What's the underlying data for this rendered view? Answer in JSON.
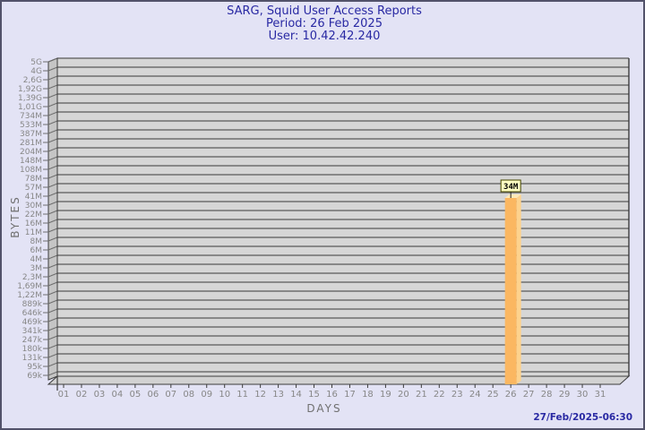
{
  "header": {
    "title": "SARG, Squid User Access Reports",
    "period": "Period: 26 Feb 2025",
    "user": "User: 10.42.42.240"
  },
  "footer": {
    "timestamp": "27/Feb/2025-06:30"
  },
  "chart_data": {
    "type": "bar",
    "title": "SARG, Squid User Access Reports",
    "subtitle1": "Period: 26 Feb 2025",
    "subtitle2": "User: 10.42.42.240",
    "xlabel": "DAYS",
    "ylabel": "BYTES",
    "y_scale": "log",
    "grid": "horizontal",
    "legend_position": "none",
    "y_ticks": [
      "5G",
      "4G",
      "2,6G",
      "1,92G",
      "1,39G",
      "1,01G",
      "734M",
      "533M",
      "387M",
      "281M",
      "204M",
      "148M",
      "108M",
      "78M",
      "57M",
      "41M",
      "30M",
      "22M",
      "16M",
      "11M",
      "8M",
      "6M",
      "4M",
      "3M",
      "2,3M",
      "1,69M",
      "1,22M",
      "889k",
      "646k",
      "469k",
      "341k",
      "247k",
      "180k",
      "131k",
      "95k",
      "69k"
    ],
    "x_ticks": [
      "01",
      "02",
      "03",
      "04",
      "05",
      "06",
      "07",
      "08",
      "09",
      "10",
      "11",
      "12",
      "13",
      "14",
      "15",
      "16",
      "17",
      "18",
      "19",
      "20",
      "21",
      "22",
      "23",
      "24",
      "25",
      "26",
      "27",
      "28",
      "29",
      "30",
      "31"
    ],
    "y_range_labels": [
      "69k",
      "5G"
    ],
    "bars": [
      {
        "day": "26",
        "value_label": "34M"
      }
    ],
    "colors": {
      "bar_front": "#fbb761",
      "bar_side": "#fdd28d",
      "bar_top": "#fee9b8",
      "plot_bg": "#d6d6d6",
      "wall_bg": "#c5c5c5",
      "floor_bg": "#d2d2d2",
      "gridline": "#6e6e6e",
      "axis_edge": "#3c3c3c",
      "tick_text": "#878787",
      "annotation_bg": "#ffffc2",
      "annotation_border": "#454500",
      "title_text": "#2929a3",
      "page_bg": "#e3e3f5"
    }
  }
}
